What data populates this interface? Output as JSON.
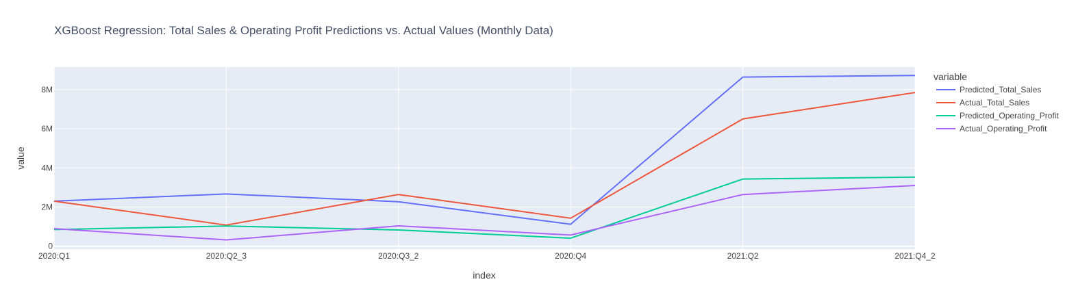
{
  "chart_data": {
    "type": "line",
    "title": "XGBoost Regression: Total Sales & Operating Profit Predictions vs. Actual Values (Monthly Data)",
    "xlabel": "index",
    "ylabel": "value",
    "categories": [
      "2020:Q1",
      "2020:Q2_3",
      "2020:Q3_2",
      "2020:Q4",
      "2021:Q2",
      "2021:Q4_2"
    ],
    "ylim": [
      -150000,
      9150000
    ],
    "yticks": [
      0,
      2000000,
      4000000,
      6000000,
      8000000
    ],
    "ytick_labels": [
      "0",
      "2M",
      "4M",
      "6M",
      "8M"
    ],
    "grid": true,
    "legend_title": "variable",
    "legend_position": "right",
    "series": [
      {
        "name": "Predicted_Total_Sales",
        "color": "#636efa",
        "values": [
          2300000,
          2670000,
          2270000,
          1120000,
          8640000,
          8720000
        ]
      },
      {
        "name": "Actual_Total_Sales",
        "color": "#ef553b",
        "values": [
          2300000,
          1080000,
          2640000,
          1430000,
          6500000,
          7850000
        ]
      },
      {
        "name": "Predicted_Operating_Profit",
        "color": "#00cc96",
        "values": [
          850000,
          1030000,
          830000,
          410000,
          3430000,
          3530000
        ]
      },
      {
        "name": "Actual_Operating_Profit",
        "color": "#ab63fa",
        "values": [
          900000,
          320000,
          1040000,
          570000,
          2640000,
          3100000
        ]
      }
    ],
    "plot_bgcolor": "#e5ecf6"
  }
}
